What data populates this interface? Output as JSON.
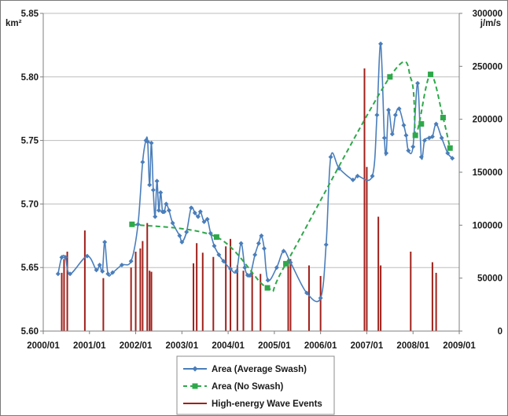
{
  "chart_data": {
    "type": "line",
    "title": "",
    "xlabel": "",
    "y_unit_left": "km²",
    "y_unit_right": "j/m/s",
    "x_axis": {
      "range": [
        "2000/01",
        "2009/01"
      ],
      "tick_labels": [
        "2000/01",
        "2001/01",
        "2002/01",
        "2003/01",
        "2004/01",
        "2005/01",
        "2006/01",
        "2007/01",
        "2008/01",
        "2009/01"
      ]
    },
    "y_left": {
      "range": [
        5.6,
        5.85
      ],
      "tick_labels": [
        "5.60",
        "5.65",
        "5.70",
        "5.75",
        "5.80",
        "5.85"
      ]
    },
    "y_right": {
      "range": [
        0,
        300000
      ],
      "tick_labels": [
        "0",
        "50000",
        "100000",
        "150000",
        "200000",
        "250000",
        "300000"
      ]
    },
    "grid": "horizontal",
    "legend_position": "bottom",
    "colors": {
      "average_swash": "#4a7ebb",
      "no_swash": "#2ea84a",
      "wave_events": "#a0201b",
      "grid": "#bdbdbd"
    },
    "series": [
      {
        "name": "Area (Average Swash)",
        "axis": "left",
        "style": "solid line with diamond markers",
        "x": [
          2000.32,
          2000.4,
          2000.48,
          2000.58,
          2000.95,
          2001.15,
          2001.22,
          2001.28,
          2001.33,
          2001.4,
          2001.5,
          2001.7,
          2001.9,
          2002.05,
          2002.15,
          2002.22,
          2002.26,
          2002.3,
          2002.34,
          2002.38,
          2002.42,
          2002.46,
          2002.5,
          2002.54,
          2002.58,
          2002.62,
          2002.66,
          2002.72,
          2002.8,
          2002.95,
          2003.0,
          2003.1,
          2003.2,
          2003.28,
          2003.35,
          2003.4,
          2003.48,
          2003.55,
          2003.62,
          2003.7,
          2003.8,
          2003.9,
          2004.05,
          2004.18,
          2004.28,
          2004.36,
          2004.42,
          2004.48,
          2004.58,
          2004.66,
          2004.72,
          2004.78,
          2004.86,
          2005.05,
          2005.2,
          2005.35,
          2005.7,
          2006.0,
          2006.12,
          2006.22,
          2006.4,
          2006.7,
          2006.8,
          2007.12,
          2007.22,
          2007.3,
          2007.38,
          2007.42,
          2007.47,
          2007.55,
          2007.62,
          2007.7,
          2007.8,
          2007.85,
          2007.9,
          2008.0,
          2008.1,
          2008.18,
          2008.25,
          2008.35,
          2008.42,
          2008.5,
          2008.62,
          2008.75,
          2008.85
        ],
        "y": [
          5.645,
          5.658,
          5.658,
          5.645,
          5.659,
          5.648,
          5.652,
          5.647,
          5.67,
          5.645,
          5.646,
          5.652,
          5.655,
          5.684,
          5.733,
          5.75,
          5.749,
          5.715,
          5.748,
          5.711,
          5.69,
          5.718,
          5.695,
          5.709,
          5.694,
          5.694,
          5.7,
          5.695,
          5.685,
          5.675,
          5.67,
          5.678,
          5.697,
          5.693,
          5.69,
          5.694,
          5.686,
          5.688,
          5.677,
          5.667,
          5.66,
          5.655,
          5.649,
          5.647,
          5.669,
          5.65,
          5.644,
          5.644,
          5.66,
          5.669,
          5.675,
          5.665,
          5.64,
          5.65,
          5.663,
          5.654,
          5.63,
          5.626,
          5.668,
          5.737,
          5.728,
          5.719,
          5.722,
          5.722,
          5.77,
          5.826,
          5.752,
          5.74,
          5.774,
          5.755,
          5.77,
          5.775,
          5.762,
          5.754,
          5.742,
          5.745,
          5.795,
          5.737,
          5.75,
          5.752,
          5.753,
          5.763,
          5.752,
          5.74,
          5.736
        ]
      },
      {
        "name": "Area (No Swash)",
        "axis": "left",
        "style": "dashed smooth line with square markers",
        "x": [
          2001.92,
          2003.75,
          2004.85,
          2005.25,
          2007.5,
          2008.05,
          2008.18,
          2008.38,
          2008.65,
          2008.8
        ],
        "y": [
          5.684,
          5.674,
          5.634,
          5.653,
          5.8,
          5.754,
          5.763,
          5.802,
          5.768,
          5.744
        ],
        "curve_x": [
          2001.92,
          2003.75,
          2004.85,
          2005.25,
          2007.5,
          2007.96,
          2008.05,
          2008.13,
          2008.38,
          2008.65,
          2008.8
        ],
        "curve_y": [
          5.684,
          5.674,
          5.634,
          5.653,
          5.8,
          5.798,
          5.754,
          5.763,
          5.802,
          5.768,
          5.744
        ]
      },
      {
        "name": "High-energy Wave Events",
        "axis": "right",
        "style": "vertical bars",
        "x": [
          2000.4,
          2000.45,
          2000.52,
          2000.9,
          2001.3,
          2001.9,
          2002.0,
          2002.1,
          2002.15,
          2002.25,
          2002.3,
          2002.34,
          2003.25,
          2003.32,
          2003.45,
          2003.68,
          2003.95,
          2004.05,
          2004.2,
          2004.33,
          2004.52,
          2004.7,
          2005.3,
          2005.35,
          2005.75,
          2006.0,
          2006.95,
          2007.0,
          2007.25,
          2007.3,
          2007.95,
          2008.42,
          2008.5
        ],
        "values": [
          55000,
          68000,
          75000,
          95000,
          50000,
          60000,
          75000,
          78000,
          85000,
          102000,
          57000,
          56000,
          64000,
          83000,
          74000,
          70000,
          80000,
          87000,
          62000,
          57000,
          56000,
          54000,
          67000,
          68000,
          62000,
          52000,
          248000,
          155000,
          108000,
          62000,
          75000,
          65000,
          55000
        ]
      }
    ]
  }
}
